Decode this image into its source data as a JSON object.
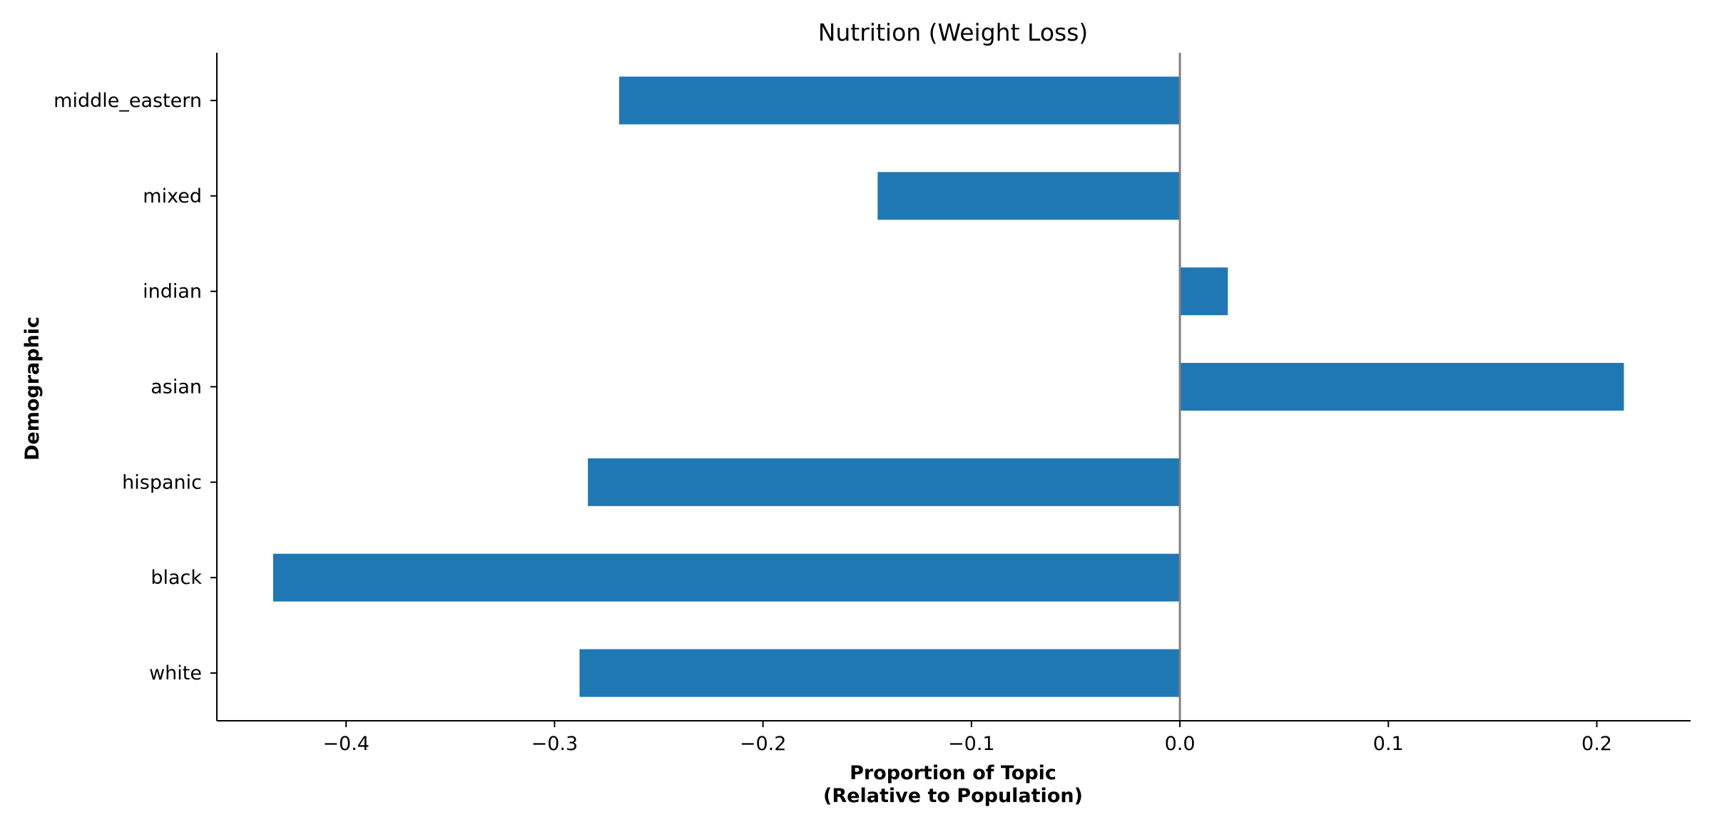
{
  "chart_data": {
    "type": "bar",
    "orientation": "horizontal",
    "title": "Nutrition (Weight Loss)",
    "xlabel_lines": [
      "Proportion of Topic",
      "(Relative to Population)"
    ],
    "ylabel": "Demographic",
    "categories": [
      "white",
      "black",
      "hispanic",
      "asian",
      "indian",
      "mixed",
      "middle_eastern"
    ],
    "values": [
      -0.288,
      -0.435,
      -0.284,
      0.213,
      0.023,
      -0.145,
      -0.269
    ],
    "xlim": [
      -0.462,
      0.245
    ],
    "xticks": [
      -0.4,
      -0.3,
      -0.2,
      -0.1,
      0.0,
      0.1,
      0.2
    ],
    "xtick_labels": [
      "−0.4",
      "−0.3",
      "−0.2",
      "−0.1",
      "0.0",
      "0.1",
      "0.2"
    ],
    "bar_color": "#1f77b4",
    "zero_line_color": "#808080",
    "axis_color": "#000000",
    "grid": false,
    "legend": "none"
  }
}
